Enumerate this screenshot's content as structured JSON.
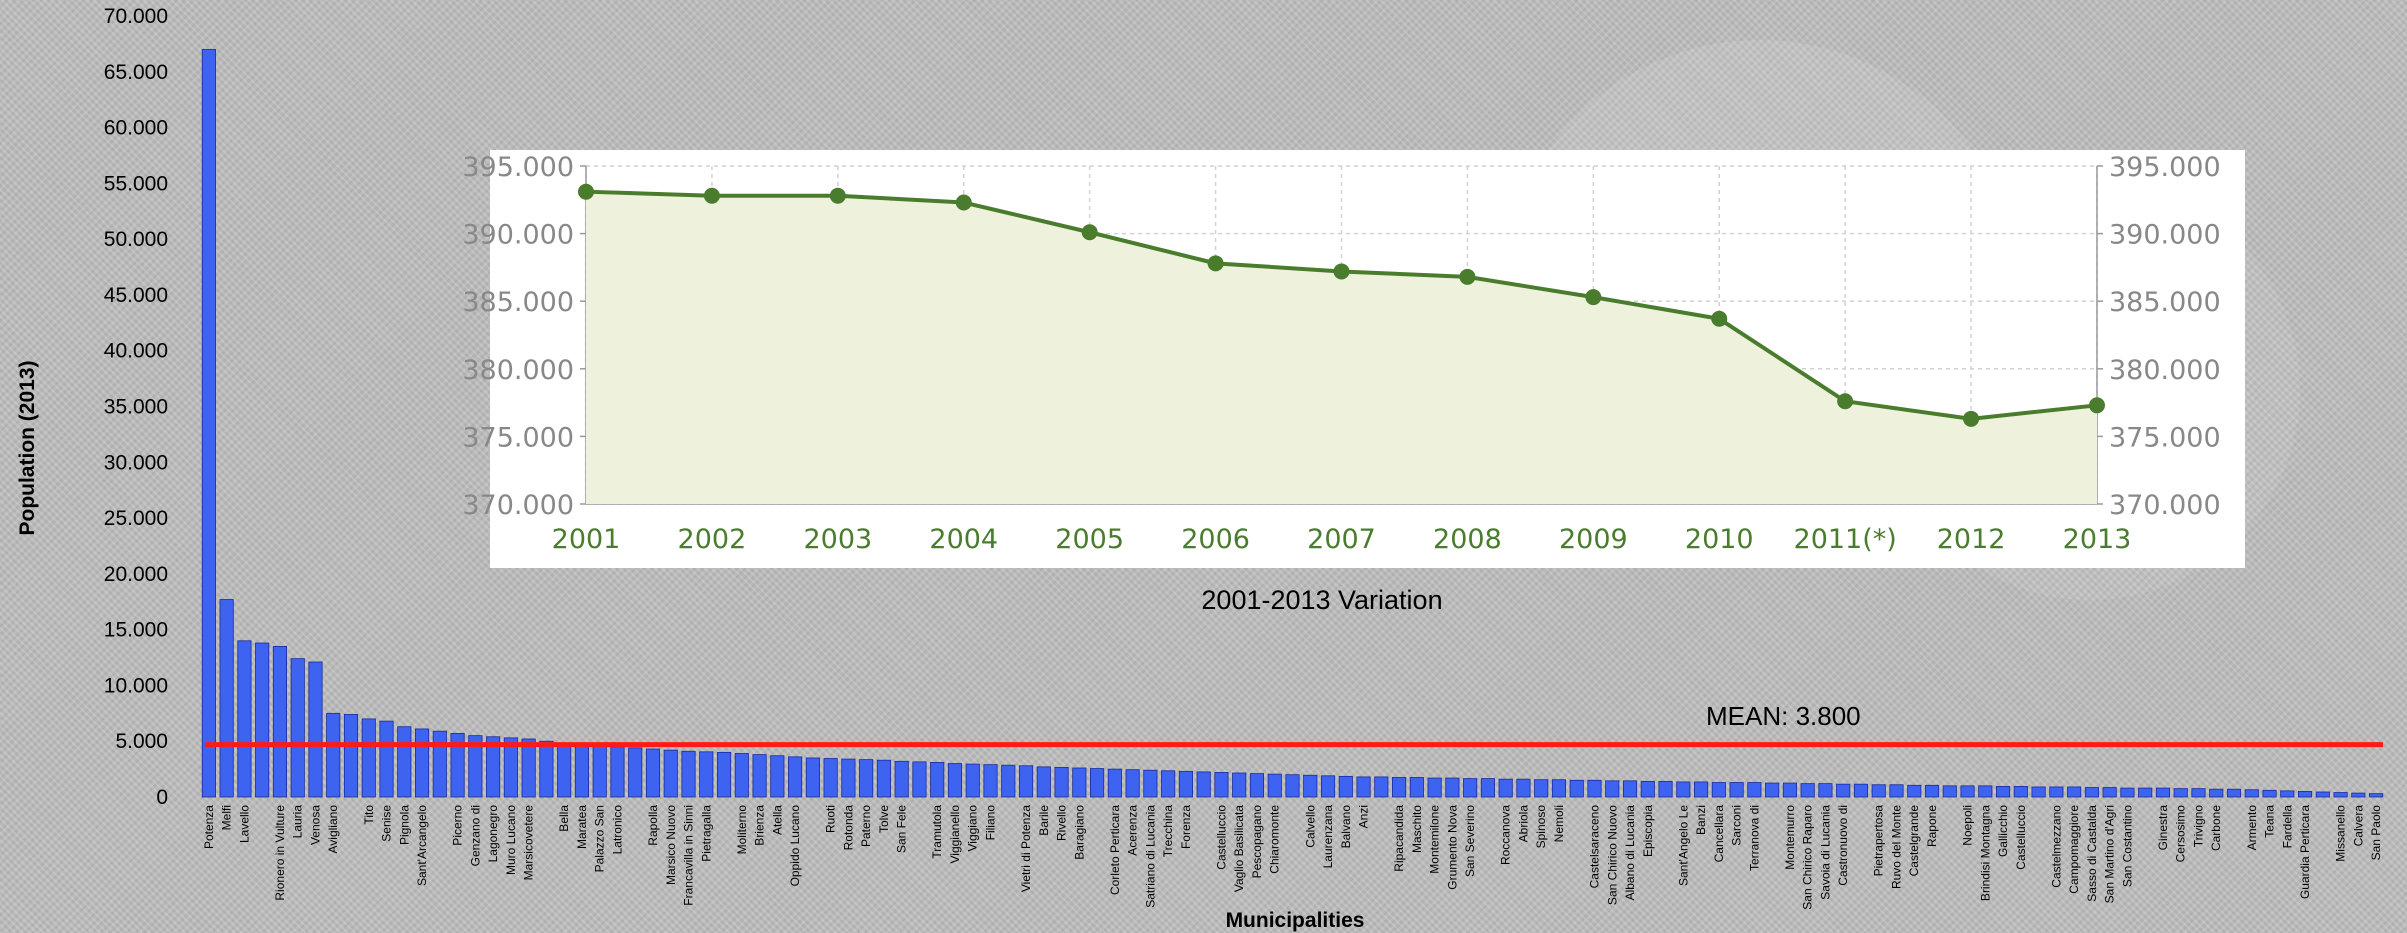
{
  "chart_data": [
    {
      "type": "bar",
      "ylabel": "Population (2013)",
      "xlabel": "Municipalities",
      "ylim": [
        0,
        70000
      ],
      "yticks": [
        "0",
        "5.000",
        "10.000",
        "15.000",
        "20.000",
        "25.000",
        "30.000",
        "35.000",
        "40.000",
        "45.000",
        "50.000",
        "55.000",
        "60.000",
        "65.000",
        "70.000"
      ],
      "ytick_values": [
        0,
        5000,
        10000,
        15000,
        20000,
        25000,
        30000,
        35000,
        40000,
        45000,
        50000,
        55000,
        60000,
        65000,
        70000
      ],
      "bar_color": "#3d63f0",
      "mean": {
        "value": 3800,
        "label": "MEAN: 3.800",
        "color": "#ff1a1a"
      },
      "labeled_categories": [
        "Potenza",
        "Melfi",
        "Lavello",
        "Rionero in Vulture",
        "Lauria",
        "Venosa",
        "Avigliano",
        "Tito",
        "Senise",
        "Pignola",
        "Sant'Arcangelo",
        "Picerno",
        "Genzano di",
        "Lagonegro",
        "Muro Lucano",
        "Marsicovetere",
        "Bella",
        "Maratea",
        "Palazzo San",
        "Latronico",
        "Rapolla",
        "Marsico Nuovo",
        "Francavilla in Sinni",
        "Pietragalla",
        "Moliterno",
        "Brienza",
        "Atella",
        "Oppido Lucano",
        "Ruoti",
        "Rotonda",
        "Paterno",
        "Tolve",
        "San Fele",
        "Tramutola",
        "Viggianello",
        "Viggiano",
        "Filiano",
        "Vietri di Potenza",
        "Barile",
        "Rivello",
        "Baragiano",
        "Corleto Perticara",
        "Acerenza",
        "Satriano di Lucania",
        "Trecchina",
        "Forenza",
        "Castelluccio",
        "Vaglio Basilicata",
        "Pescopagano",
        "Chiaromonte",
        "Calvello",
        "Laurenzana",
        "Balvano",
        "Anzi",
        "Ripacandida",
        "Maschito",
        "Montemilone",
        "Grumento Nova",
        "San Severino",
        "Roccanova",
        "Abriola",
        "Spinoso",
        "Nemoli",
        "Castelsaraceno",
        "San Chirico Nuovo",
        "Albano di Lucania",
        "Episcopia",
        "Sant'Angelo Le",
        "Banzi",
        "Cancellara",
        "Sarconi",
        "Terranova di",
        "Montemurro",
        "San Chirico Raparo",
        "Savoia di Lucania",
        "Castronuovo di",
        "Pietrapertosa",
        "Ruvo del Monte",
        "Castelgrande",
        "Rapone",
        "Noepoli",
        "Brindisi Montagna",
        "Gallicchio",
        "Castelluccio",
        "Castelmezzano",
        "Campomaggiore",
        "Sasso di Castalda",
        "San Martino d'Agri",
        "San Costantino",
        "Ginestra",
        "Cersosimo",
        "Trivigno",
        "Carbone",
        "Armento",
        "Teana",
        "Fardella",
        "Guardia Perticara",
        "Missanello",
        "Calvera",
        "San Paolo"
      ],
      "values": [
        67000,
        17700,
        14000,
        13800,
        13500,
        12400,
        12100,
        7500,
        7400,
        7000,
        6800,
        6300,
        6100,
        5900,
        5700,
        5500,
        5400,
        5300,
        5200,
        5000,
        4700,
        4650,
        4600,
        4500,
        4400,
        4300,
        4200,
        4100,
        4050,
        4000,
        3900,
        3800,
        3700,
        3600,
        3500,
        3450,
        3400,
        3350,
        3300,
        3200,
        3150,
        3100,
        3000,
        2950,
        2900,
        2850,
        2800,
        2700,
        2650,
        2600,
        2550,
        2500,
        2450,
        2400,
        2350,
        2300,
        2250,
        2200,
        2150,
        2100,
        2050,
        2000,
        1950,
        1900,
        1850,
        1800,
        1800,
        1750,
        1750,
        1700,
        1700,
        1650,
        1650,
        1600,
        1600,
        1550,
        1550,
        1500,
        1500,
        1450,
        1450,
        1400,
        1400,
        1350,
        1350,
        1300,
        1300,
        1300,
        1250,
        1250,
        1200,
        1200,
        1150,
        1150,
        1100,
        1100,
        1050,
        1050,
        1000,
        1000,
        1000,
        950,
        950,
        900,
        900,
        900,
        850,
        850,
        800,
        800,
        800,
        750,
        750,
        700,
        700,
        650,
        600,
        550,
        500,
        450,
        400,
        350,
        300
      ]
    },
    {
      "type": "area",
      "title": "2001-2013 Variation",
      "categories": [
        "2001",
        "2002",
        "2003",
        "2004",
        "2005",
        "2006",
        "2007",
        "2008",
        "2009",
        "2010",
        "2011(*)",
        "2012",
        "2013"
      ],
      "values": [
        393100,
        392800,
        392800,
        392300,
        390100,
        387800,
        387200,
        386800,
        385300,
        383700,
        377600,
        376300,
        377300
      ],
      "ylim": [
        370000,
        395000
      ],
      "yticks": [
        "370.000",
        "375.000",
        "380.000",
        "385.000",
        "390.000",
        "395.000"
      ],
      "ytick_values": [
        370000,
        375000,
        380000,
        385000,
        390000,
        395000
      ],
      "line_color": "#4a7c2e",
      "fill_color": "#eef2dc"
    }
  ]
}
